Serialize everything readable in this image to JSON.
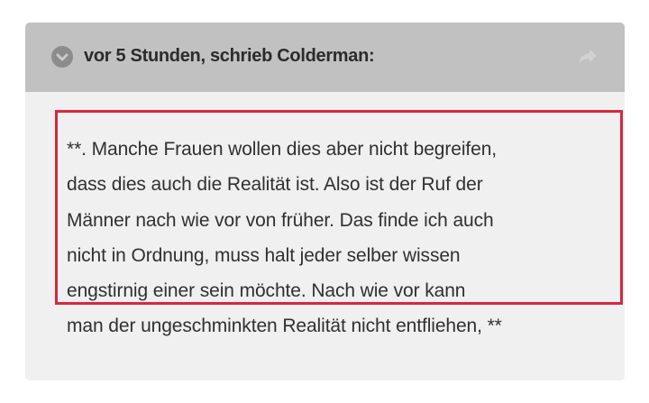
{
  "quote": {
    "attribution": "vor 5 Stunden, schrieb Colderman:",
    "collapse_icon": "chevron-down-circle-icon",
    "share_icon": "share-arrow-icon",
    "lines": [
      "**. Manche Frauen wollen dies aber nicht begreifen,",
      "dass dies auch die Realität ist. Also ist der Ruf der",
      "Männer nach wie vor von früher. Das finde ich auch",
      "nicht in Ordnung, muss halt jeder selber wissen",
      "engstirnig einer sein möchte. Nach wie vor kann",
      "man der ungeschminkten Realität nicht entfliehen, **"
    ]
  },
  "colors": {
    "header_bg": "#c1c1c1",
    "body_bg": "#f0f0f0",
    "highlight": "#d6283f"
  }
}
